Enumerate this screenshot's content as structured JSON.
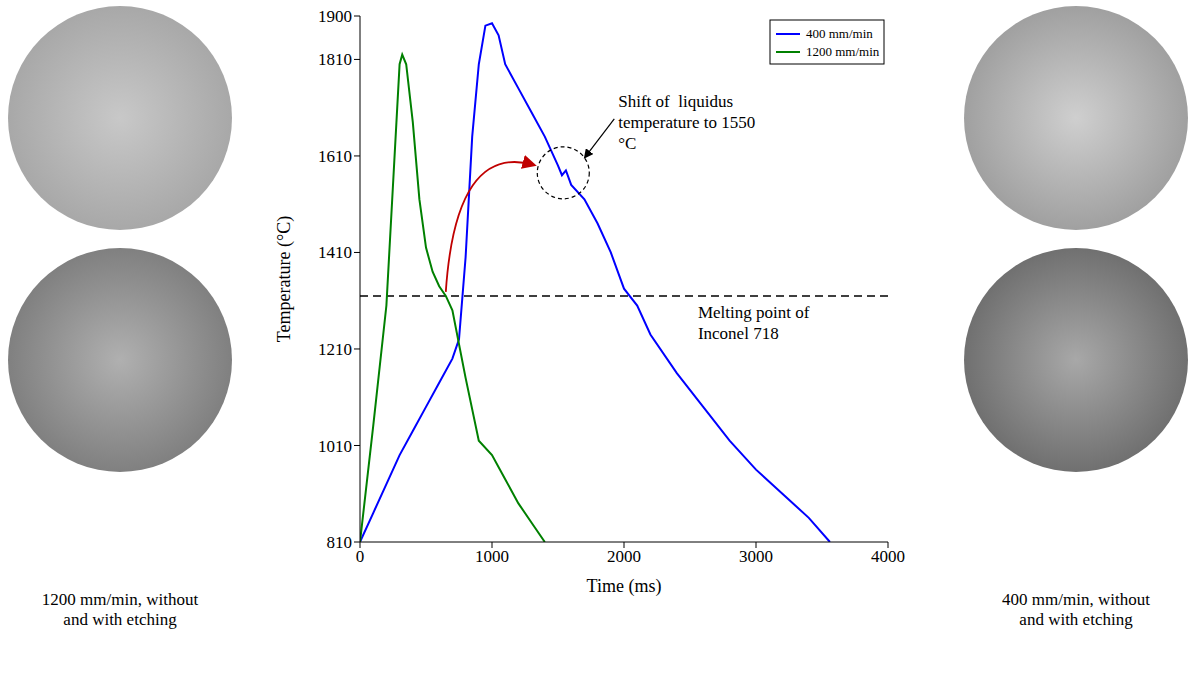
{
  "chart_data": {
    "type": "line",
    "x_label": "Time (ms)",
    "y_label": "Temperature (°C)",
    "xlim": [
      0,
      4000
    ],
    "xticks": [
      0,
      1000,
      2000,
      3000,
      4000
    ],
    "ylim": [
      810,
      1900
    ],
    "yticks": [
      810,
      1010,
      1210,
      1410,
      1610,
      1810,
      1900
    ],
    "legend": "upper right",
    "series": [
      {
        "name": "400 mm/min",
        "color": "#0000ff",
        "x": [
          0,
          100,
          200,
          300,
          400,
          500,
          600,
          700,
          750,
          800,
          850,
          900,
          950,
          1000,
          1050,
          1100,
          1200,
          1300,
          1400,
          1500,
          1530,
          1560,
          1600,
          1700,
          1800,
          1900,
          2000,
          2100,
          2200,
          2400,
          2600,
          2800,
          3000,
          3200,
          3400,
          3560
        ],
        "values": [
          810,
          870,
          930,
          990,
          1040,
          1090,
          1140,
          1190,
          1230,
          1400,
          1650,
          1800,
          1880,
          1885,
          1860,
          1800,
          1750,
          1700,
          1650,
          1590,
          1570,
          1580,
          1550,
          1520,
          1470,
          1410,
          1335,
          1300,
          1240,
          1160,
          1090,
          1020,
          960,
          910,
          860,
          810
        ]
      },
      {
        "name": "1200 mm/min",
        "color": "#008000",
        "x": [
          0,
          100,
          200,
          260,
          300,
          320,
          350,
          400,
          450,
          500,
          550,
          600,
          650,
          700,
          800,
          900,
          1000,
          1100,
          1200,
          1300,
          1400
        ],
        "values": [
          810,
          1050,
          1300,
          1600,
          1800,
          1820,
          1800,
          1680,
          1520,
          1420,
          1370,
          1340,
          1320,
          1290,
          1150,
          1020,
          990,
          940,
          890,
          850,
          810
        ]
      }
    ],
    "annotations": {
      "liquidus_shift": {
        "text": "Shift of  liquidus temperature to 1550 °C",
        "x": 1540,
        "y": 1575
      },
      "melting_point": {
        "text": "Melting point of Inconel 718",
        "value": 1320
      }
    },
    "panels": [
      {
        "caption": "1200 mm/min, without and with etching"
      },
      {
        "caption": "400 mm/min, without and with etching"
      }
    ]
  }
}
